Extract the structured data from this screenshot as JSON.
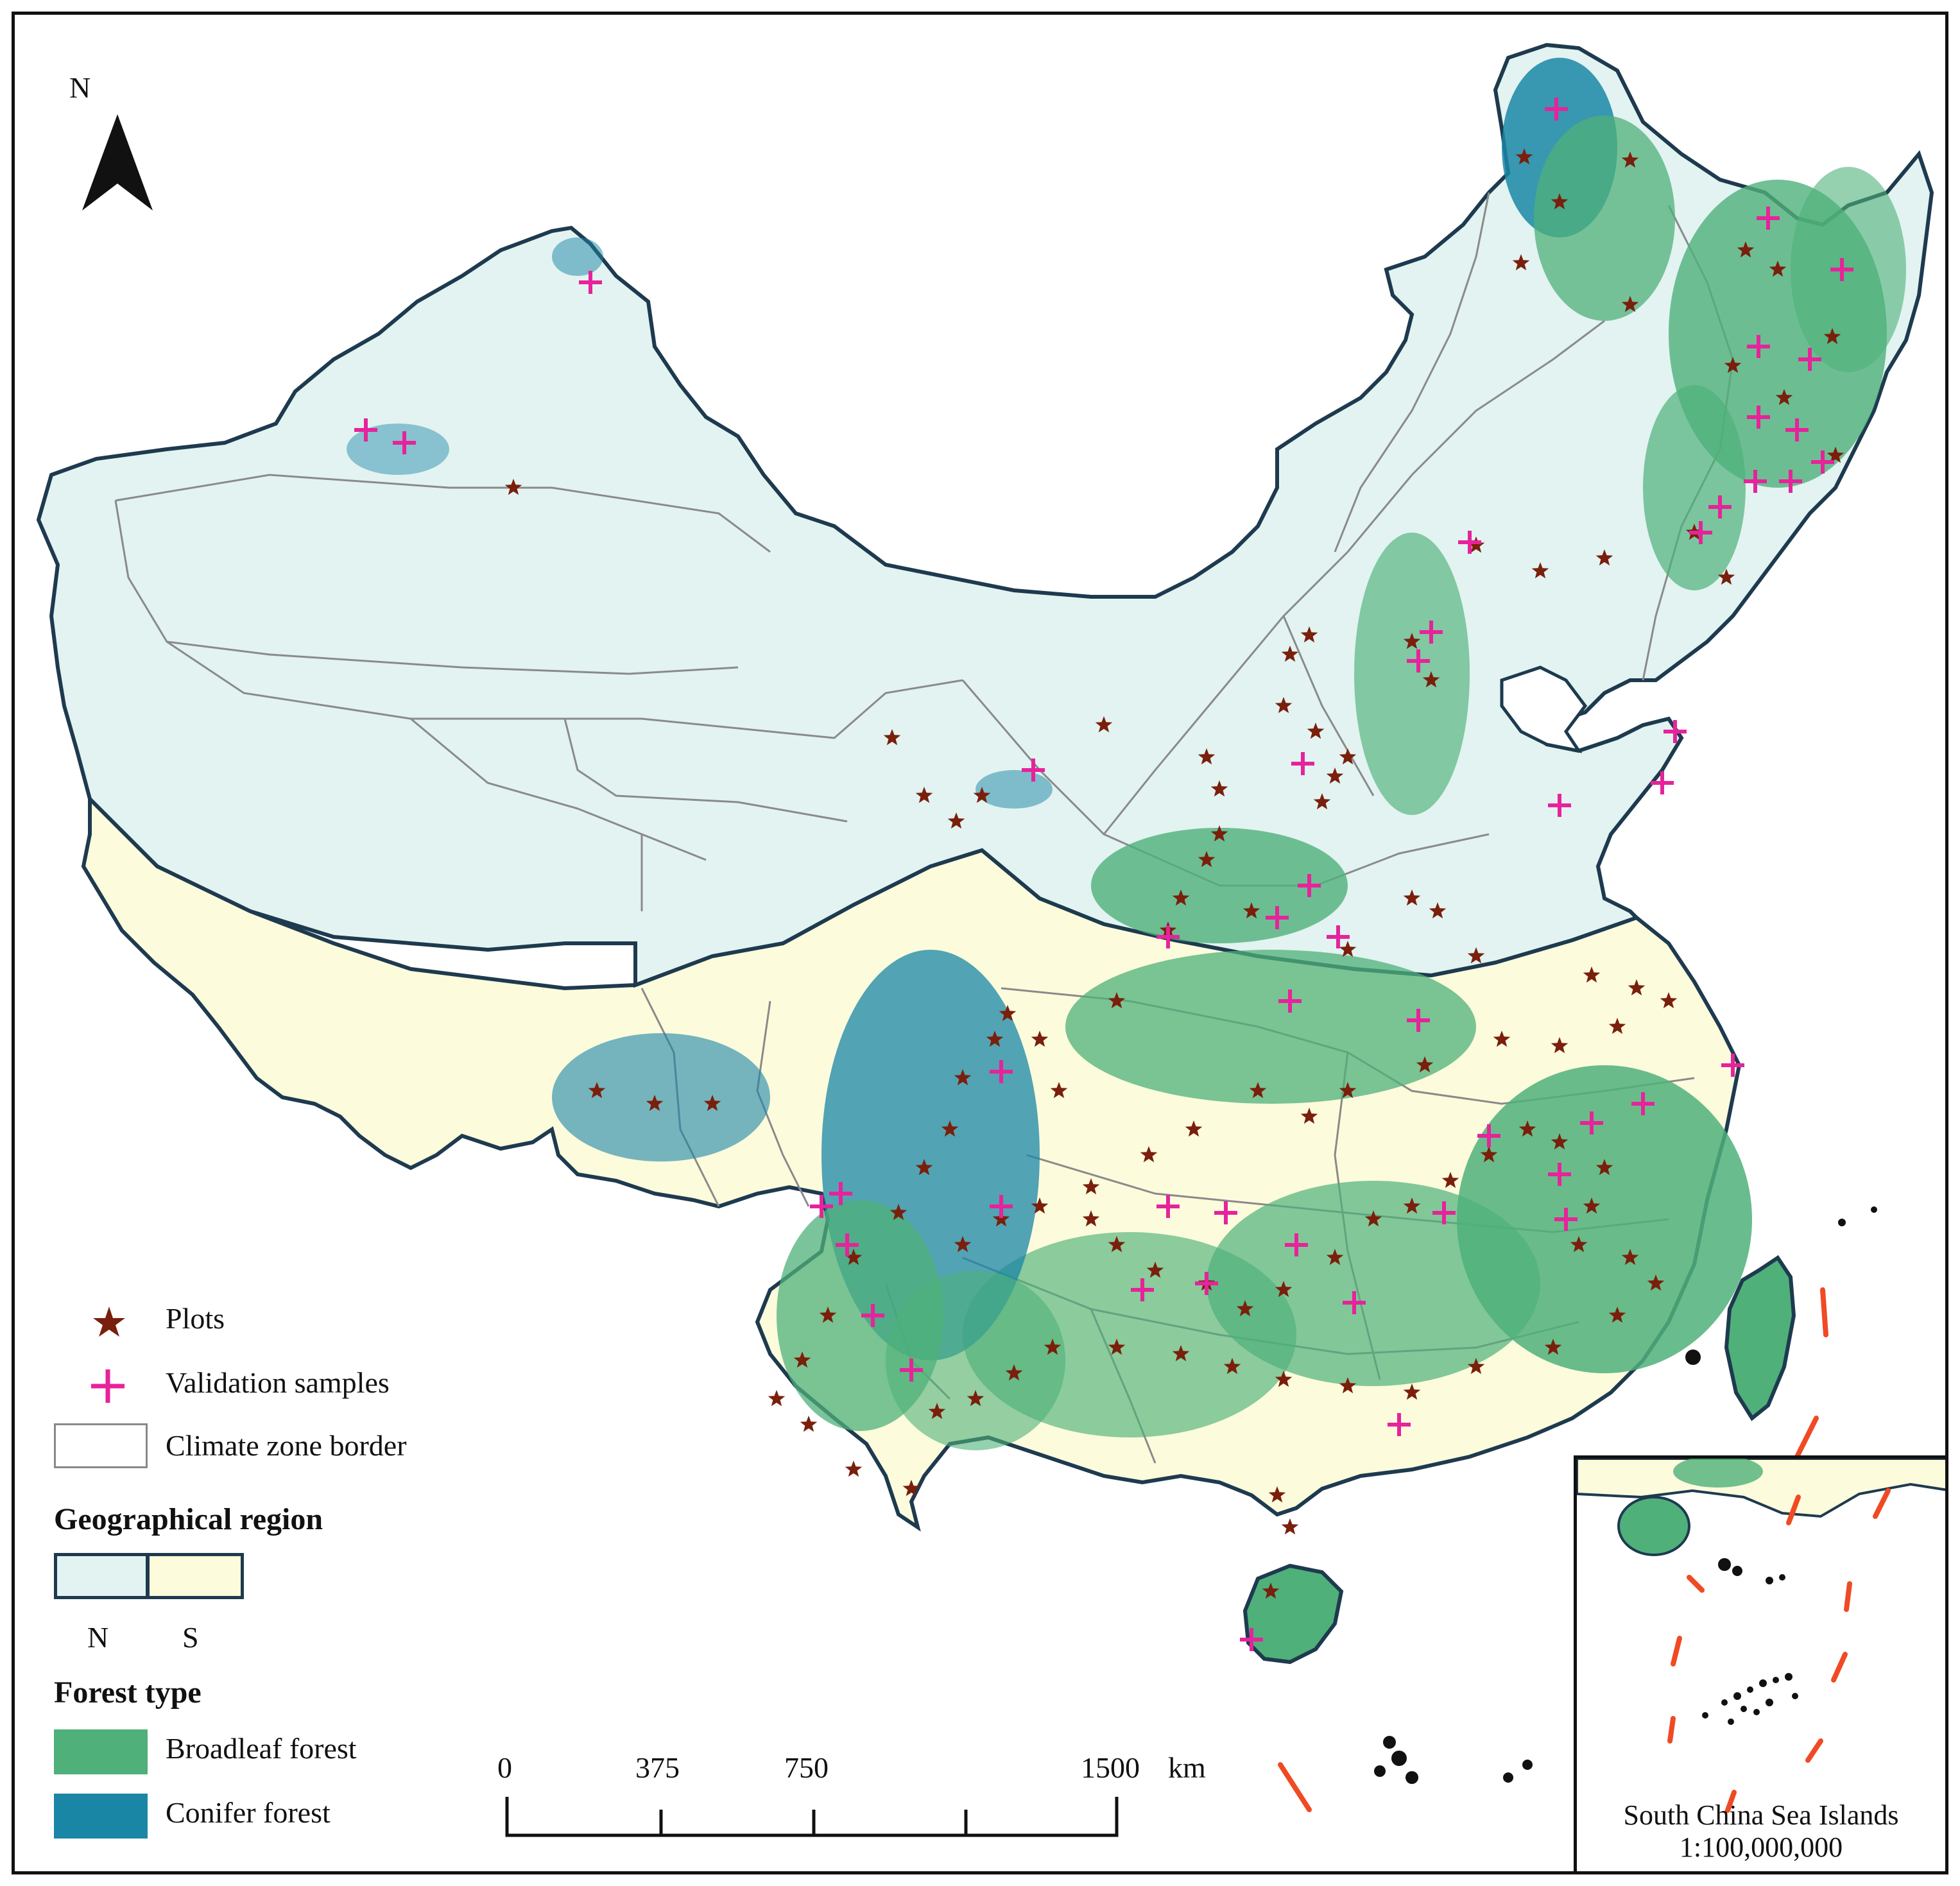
{
  "north_arrow": {
    "label": "N",
    "icon": "north-arrow-icon"
  },
  "legend": {
    "plots": {
      "label": "Plots",
      "icon": "star-icon",
      "color": "#7a1f0c"
    },
    "validation": {
      "label": "Validation samples",
      "icon": "plus-icon",
      "color": "#e6239b"
    },
    "climate_border": {
      "label": "Climate zone border",
      "icon": "outline-box-icon"
    },
    "region": {
      "title": "Geographical region",
      "items": [
        {
          "label": "N",
          "color": "#e2f3f1"
        },
        {
          "label": "S",
          "color": "#fcfbdc"
        }
      ]
    },
    "forest": {
      "title": "Forest type",
      "items": [
        {
          "label": "Broadleaf forest",
          "color": "#4fb07a"
        },
        {
          "label": "Conifer forest",
          "color": "#1a86a6"
        }
      ]
    }
  },
  "scale_bar": {
    "ticks": [
      "0",
      "375",
      "750",
      "1500"
    ],
    "unit": "km"
  },
  "inset": {
    "title": "South China Sea Islands",
    "scale": "1:100,000,000"
  },
  "colors": {
    "north_region": "#e2f3f1",
    "south_region": "#fcfbdc",
    "broadleaf": "#4fb07a",
    "conifer": "#1a86a6",
    "border": "#1e3a4f",
    "plots": "#7a1f0c",
    "validation": "#e6239b",
    "nine_dash": "#f04a24"
  }
}
